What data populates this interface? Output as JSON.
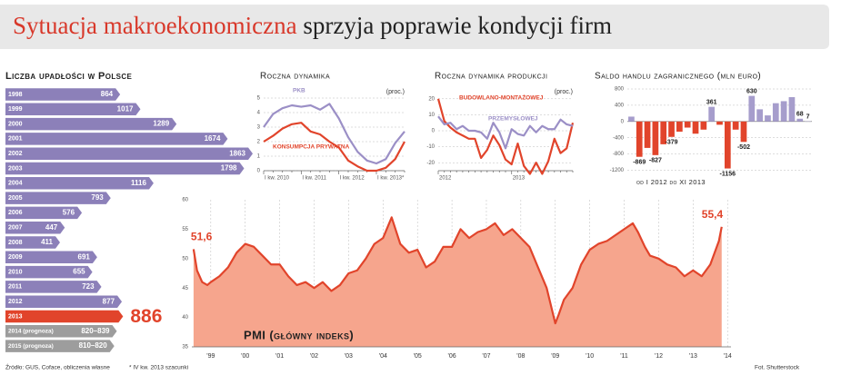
{
  "header": {
    "title_red": "Sytuacja makroekonomiczna",
    "title_dark": "sprzyja poprawie kondycji firm"
  },
  "footer": {
    "source": "Źródło: GUS, Coface, obliczenia własne",
    "note": "* IV kw. 2013 szacunki",
    "photo": "Fot. Shutterstock"
  },
  "chart_data": [
    {
      "type": "hbar",
      "title": "Liczba upadłości w Polsce",
      "categories": [
        "1998",
        "1999",
        "2000",
        "2001",
        "2002",
        "2003",
        "2004",
        "2005",
        "2006",
        "2007",
        "2008",
        "2009",
        "2010",
        "2011",
        "2012",
        "2013"
      ],
      "values": [
        864,
        1017,
        1289,
        1674,
        1863,
        1798,
        1116,
        793,
        576,
        447,
        411,
        691,
        655,
        723,
        877,
        886
      ],
      "colors": [
        "#8c80b9",
        "#8c80b9",
        "#8c80b9",
        "#8c80b9",
        "#8c80b9",
        "#8c80b9",
        "#8c80b9",
        "#8c80b9",
        "#8c80b9",
        "#8c80b9",
        "#8c80b9",
        "#8c80b9",
        "#8c80b9",
        "#8c80b9",
        "#8c80b9",
        "#e1442b"
      ],
      "forecasts": {
        "categories": [
          "2014 (prognoza)",
          "2015 (prognoza)"
        ],
        "low": [
          820,
          810
        ],
        "high": [
          839,
          820
        ],
        "value_labels": [
          "820–839",
          "810–820"
        ],
        "color": "#9d9d9d"
      }
    },
    {
      "type": "line",
      "title": "Roczna dynamika",
      "unit": "(proc.)",
      "categories": [
        "I kw. 2010",
        null,
        null,
        null,
        "I kw. 2011",
        null,
        null,
        null,
        "I kw. 2012",
        null,
        null,
        null,
        "I kw. 2013*",
        null,
        null,
        null
      ],
      "ylim": [
        0,
        5.5
      ],
      "yticks": [
        0,
        1,
        2,
        3,
        4,
        5
      ],
      "series": [
        {
          "name": "PKB",
          "color": "#9b8fc6",
          "values": [
            3.0,
            3.9,
            4.3,
            4.5,
            4.4,
            4.5,
            4.2,
            4.6,
            3.6,
            2.3,
            1.3,
            0.7,
            0.5,
            0.8,
            1.9,
            2.7
          ]
        },
        {
          "name": "KONSUMPCJA PRYWATNA",
          "color": "#e1442b",
          "values": [
            2.0,
            2.4,
            2.9,
            3.2,
            3.3,
            2.7,
            2.5,
            2.0,
            1.6,
            0.7,
            0.3,
            0.0,
            0.0,
            0.2,
            0.8,
            2.0
          ]
        }
      ]
    },
    {
      "type": "line",
      "title": "Roczna dynamika produkcji",
      "unit": "(proc.)",
      "categories": [
        "2012",
        null,
        null,
        null,
        null,
        null,
        null,
        null,
        null,
        null,
        null,
        null,
        "2013",
        null,
        null,
        null,
        null,
        null,
        null,
        null,
        null,
        null,
        null
      ],
      "ylim": [
        -25,
        25
      ],
      "yticks": [
        -20,
        -10,
        0,
        10,
        20
      ],
      "series": [
        {
          "name": "BUDOWLANO-MONTAŻOWEJ",
          "color": "#e1442b",
          "values": [
            20,
            6,
            2,
            -1,
            -3,
            -5,
            -5,
            -17,
            -12,
            -3,
            -9,
            -18,
            -21,
            -8,
            -22,
            -27,
            -20,
            -27,
            -19,
            -5,
            -14,
            -11,
            5
          ]
        },
        {
          "name": "PRZEMYSŁOWEJ",
          "color": "#9b8fc6",
          "values": [
            9,
            4,
            5,
            1,
            3,
            0,
            0,
            -1,
            -5,
            5,
            -1,
            -11,
            1,
            -2,
            -3,
            3,
            -1,
            3,
            1,
            1,
            7,
            4,
            3
          ]
        }
      ]
    },
    {
      "type": "bar",
      "title": "Saldo handlu zagranicznego (mln euro)",
      "note": "od I 2012 do XI 2013",
      "values": [
        120,
        -869,
        -650,
        -827,
        -560,
        -379,
        -250,
        -150,
        -300,
        -200,
        361,
        -80,
        -1156,
        -200,
        -502,
        630,
        300,
        150,
        450,
        500,
        600,
        68,
        7
      ],
      "value_labels": [
        null,
        "-869",
        null,
        "-827",
        null,
        "-379",
        null,
        null,
        null,
        null,
        "361",
        null,
        "-1156",
        null,
        "-502",
        "630",
        null,
        null,
        null,
        null,
        null,
        "68",
        "7"
      ],
      "color": "#a69dcc",
      "negative_color": "#e1442b",
      "ylim": [
        -1300,
        800
      ],
      "yticks": [
        -1200,
        -800,
        -400,
        0,
        400,
        800
      ]
    },
    {
      "type": "area",
      "title": "PMI (główny indeks)",
      "color": "#e1442b",
      "fill": "#f6a58d",
      "x": [
        1998.5,
        1998.6,
        1998.75,
        1998.9,
        1999.0,
        1999.25,
        1999.5,
        1999.75,
        2000.0,
        2000.25,
        2000.5,
        2000.75,
        2001.0,
        2001.25,
        2001.5,
        2001.75,
        2002.0,
        2002.25,
        2002.5,
        2002.75,
        2003.0,
        2003.25,
        2003.5,
        2003.75,
        2004.0,
        2004.25,
        2004.5,
        2004.75,
        2005.0,
        2005.25,
        2005.5,
        2005.75,
        2006.0,
        2006.25,
        2006.5,
        2006.75,
        2007.0,
        2007.25,
        2007.5,
        2007.75,
        2008.0,
        2008.25,
        2008.5,
        2008.75,
        2009.0,
        2009.1,
        2009.25,
        2009.5,
        2009.75,
        2010.0,
        2010.25,
        2010.5,
        2010.75,
        2011.0,
        2011.25,
        2011.4,
        2011.6,
        2011.75,
        2012.0,
        2012.25,
        2012.5,
        2012.75,
        2013.0,
        2013.25,
        2013.5,
        2013.75,
        2013.83
      ],
      "values": [
        51.6,
        48,
        46,
        45.5,
        46,
        47,
        48.5,
        51,
        52.5,
        52,
        50.5,
        49,
        49,
        47,
        45.5,
        46,
        45,
        46,
        44.5,
        45.5,
        47.5,
        48,
        50,
        52.5,
        53.5,
        57,
        52.5,
        51,
        51.5,
        48.5,
        49.5,
        52,
        52,
        55,
        53.5,
        54.5,
        55,
        56,
        54,
        55,
        53.5,
        52,
        48.5,
        45,
        39,
        40.5,
        43,
        45,
        49,
        51.5,
        52.5,
        53,
        54,
        55,
        56,
        54.5,
        52,
        50.5,
        50,
        49,
        48.5,
        47,
        48,
        47,
        49,
        53,
        55.4
      ],
      "value_labels": [
        "51,6",
        null,
        null,
        null,
        null,
        null,
        null,
        null,
        null,
        null,
        null,
        null,
        null,
        null,
        null,
        null,
        null,
        null,
        null,
        null,
        null,
        null,
        null,
        null,
        null,
        null,
        null,
        null,
        null,
        null,
        null,
        null,
        null,
        null,
        null,
        null,
        null,
        null,
        null,
        null,
        null,
        null,
        null,
        null,
        null,
        null,
        null,
        null,
        null,
        null,
        null,
        null,
        null,
        null,
        null,
        null,
        null,
        null,
        null,
        null,
        null,
        null,
        null,
        null,
        null,
        null,
        "55,4"
      ],
      "xlim": [
        1998.45,
        2014.1
      ],
      "xticks": [
        {
          "value": 1999,
          "label": "'99"
        },
        {
          "value": 2000,
          "label": "'00"
        },
        {
          "value": 2001,
          "label": "'01"
        },
        {
          "value": 2002,
          "label": "'02"
        },
        {
          "value": 2003,
          "label": "'03"
        },
        {
          "value": 2004,
          "label": "'04"
        },
        {
          "value": 2005,
          "label": "'05"
        },
        {
          "value": 2006,
          "label": "'06"
        },
        {
          "value": 2007,
          "label": "'07"
        },
        {
          "value": 2008,
          "label": "'08"
        },
        {
          "value": 2009,
          "label": "'09"
        },
        {
          "value": 2010,
          "label": "'10"
        },
        {
          "value": 2011,
          "label": "'11"
        },
        {
          "value": 2012,
          "label": "'12"
        },
        {
          "value": 2013,
          "label": "'13"
        },
        {
          "value": 2014,
          "label": "'14"
        }
      ],
      "ylim": [
        35,
        60
      ],
      "yticks": [
        35,
        40,
        45,
        50,
        55,
        60
      ],
      "grid": true
    }
  ]
}
